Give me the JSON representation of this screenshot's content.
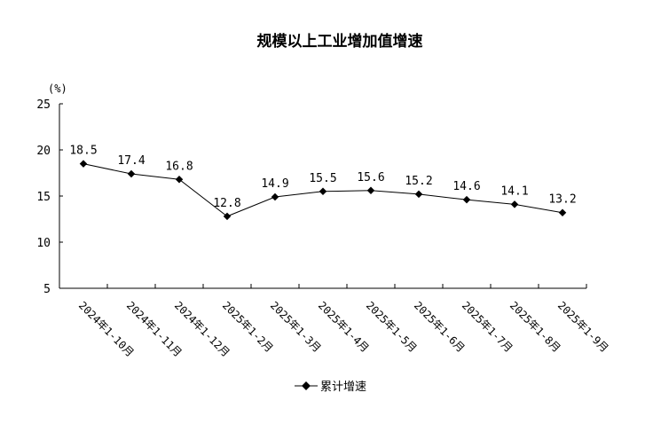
{
  "chart_data": {
    "type": "line",
    "title": "规模以上工业增加值增速",
    "ylabel": "(%)",
    "xlabel": "",
    "ylim": [
      5,
      25
    ],
    "yticks": [
      5,
      10,
      15,
      20,
      25
    ],
    "grid": false,
    "legend_position": "bottom-center",
    "categories": [
      "2024年1-10月",
      "2024年1-11月",
      "2024年1-12月",
      "2025年1-2月",
      "2025年1-3月",
      "2025年1-4月",
      "2025年1-5月",
      "2025年1-6月",
      "2025年1-7月",
      "2025年1-8月",
      "2025年1-9月"
    ],
    "series": [
      {
        "name": "累计增速",
        "values": [
          18.5,
          17.4,
          16.8,
          12.8,
          14.9,
          15.5,
          15.6,
          15.2,
          14.6,
          14.1,
          13.2
        ],
        "color": "#000000"
      }
    ]
  }
}
